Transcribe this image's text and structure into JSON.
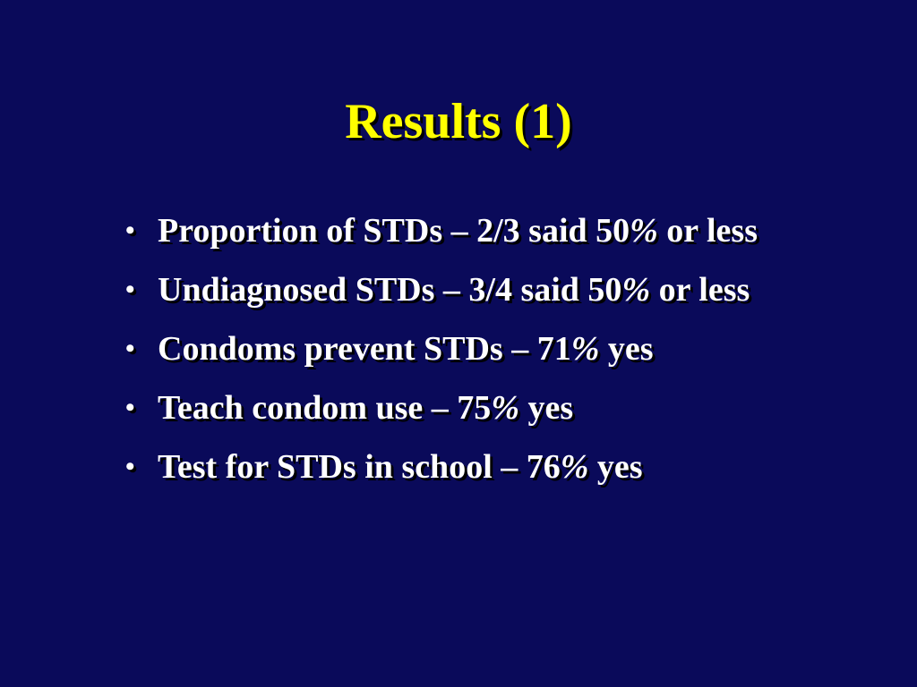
{
  "slide": {
    "title": "Results (1)",
    "bullets": [
      {
        "before": "Proportion of STDs – 2/3 said 50",
        "pct": "%",
        "after": " or less"
      },
      {
        "before": "Undiagnosed STDs – 3/4 said 50",
        "pct": "%",
        "after": " or less"
      },
      {
        "before": "Condoms prevent STDs – 71",
        "pct": "%",
        "after": " yes"
      },
      {
        "before": "Teach condom use – 75",
        "pct": "%",
        "after": " yes"
      },
      {
        "before": "Test for STDs in school – 76",
        "pct": "%",
        "after": " yes"
      }
    ],
    "bullet_glyph": "•",
    "colors": {
      "background": "#0a0a5a",
      "title": "#ffff00",
      "text": "#ffffff"
    }
  }
}
